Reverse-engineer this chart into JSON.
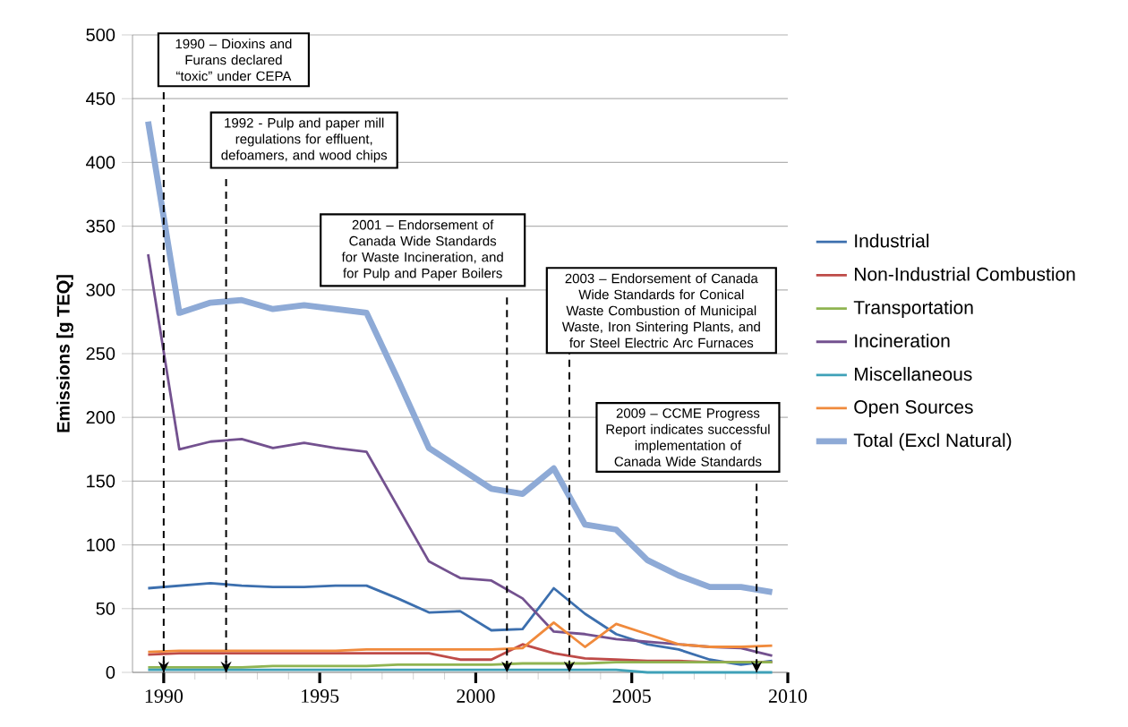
{
  "chart_data": {
    "type": "line",
    "ylabel": "Emissions [g TEQ]",
    "x": [
      1989.5,
      1990.5,
      1991.5,
      1992.5,
      1993.5,
      1994.5,
      1995.5,
      1996.5,
      1997.5,
      1998.5,
      1999.5,
      2000.5,
      2001.5,
      2002.5,
      2003.5,
      2004.5,
      2005.5,
      2006.5,
      2007.5,
      2008.5,
      2009.5
    ],
    "series": [
      {
        "name": "Industrial",
        "color": "#3c6fae",
        "values": [
          66,
          68,
          70,
          68,
          67,
          67,
          68,
          68,
          58,
          47,
          48,
          33,
          34,
          66,
          46,
          30,
          22,
          18,
          10,
          6,
          9
        ]
      },
      {
        "name": "Non-Industrial Combustion",
        "color": "#be4b48",
        "values": [
          14,
          15,
          15,
          15,
          15,
          15,
          15,
          15,
          15,
          15,
          10,
          10,
          22,
          15,
          11,
          10,
          9,
          9,
          8,
          8,
          8
        ]
      },
      {
        "name": "Transportation",
        "color": "#8fb451",
        "values": [
          4,
          4,
          4,
          4,
          5,
          5,
          5,
          5,
          6,
          6,
          6,
          6,
          7,
          7,
          7,
          8,
          8,
          8,
          8,
          8,
          8
        ]
      },
      {
        "name": "Incineration",
        "color": "#73518f",
        "values": [
          328,
          175,
          181,
          183,
          176,
          180,
          176,
          173,
          130,
          87,
          74,
          72,
          58,
          32,
          30,
          26,
          24,
          22,
          20,
          19,
          13
        ]
      },
      {
        "name": "Miscellaneous",
        "color": "#3fa1b8",
        "values": [
          2,
          2,
          2,
          2,
          2,
          2,
          2,
          2,
          2,
          2,
          2,
          2,
          2,
          2,
          2,
          2,
          0,
          0,
          0,
          0,
          0
        ]
      },
      {
        "name": "Open Sources",
        "color": "#f08a3c",
        "values": [
          16,
          17,
          17,
          17,
          17,
          17,
          17,
          18,
          18,
          18,
          18,
          18,
          19,
          39,
          20,
          38,
          30,
          22,
          20,
          20,
          21
        ]
      },
      {
        "name": "Total (Excl Natural)",
        "color": "#8eaad6",
        "values": [
          432,
          282,
          290,
          292,
          285,
          288,
          285,
          282,
          230,
          176,
          160,
          144,
          140,
          160,
          116,
          112,
          88,
          76,
          67,
          67,
          63
        ]
      }
    ],
    "xlim": [
      1989,
      2010
    ],
    "xticks": [
      1990,
      1995,
      2000,
      2005,
      2010
    ],
    "ylim": [
      0,
      500
    ],
    "yticks": [
      0,
      50,
      100,
      150,
      200,
      250,
      300,
      350,
      400,
      450,
      500
    ],
    "grid": "y",
    "legend": "right",
    "marker": "none",
    "line_style": "solid",
    "ref_lines": [
      {
        "axis": "x",
        "value": 1990,
        "label": "1990 – Dioxins and Furans declared “toxic” under CEPA",
        "color": "#000000",
        "line_style": "dashed"
      },
      {
        "axis": "x",
        "value": 1992,
        "label": "1992 - Pulp and paper mill regulations for effluent, defoamers, and wood chips",
        "color": "#000000",
        "line_style": "dashed"
      },
      {
        "axis": "x",
        "value": 2001,
        "label": "2001 – Endorsement of Canada Wide Standards for Waste Incineration, and for Pulp and Paper Boilers",
        "color": "#000000",
        "line_style": "dashed"
      },
      {
        "axis": "x",
        "value": 2003,
        "label": "2003 – Endorsement of Canada Wide Standards for Conical Waste Combustion of Municipal Waste, Iron Sintering Plants, and for Steel Electric Arc Furnaces",
        "color": "#000000",
        "line_style": "dashed"
      },
      {
        "axis": "x",
        "value": 2009,
        "label": "2009 – CCME Progress Report indicates successful implementation of Canada Wide Standards",
        "color": "#000000",
        "line_style": "dashed"
      }
    ]
  }
}
